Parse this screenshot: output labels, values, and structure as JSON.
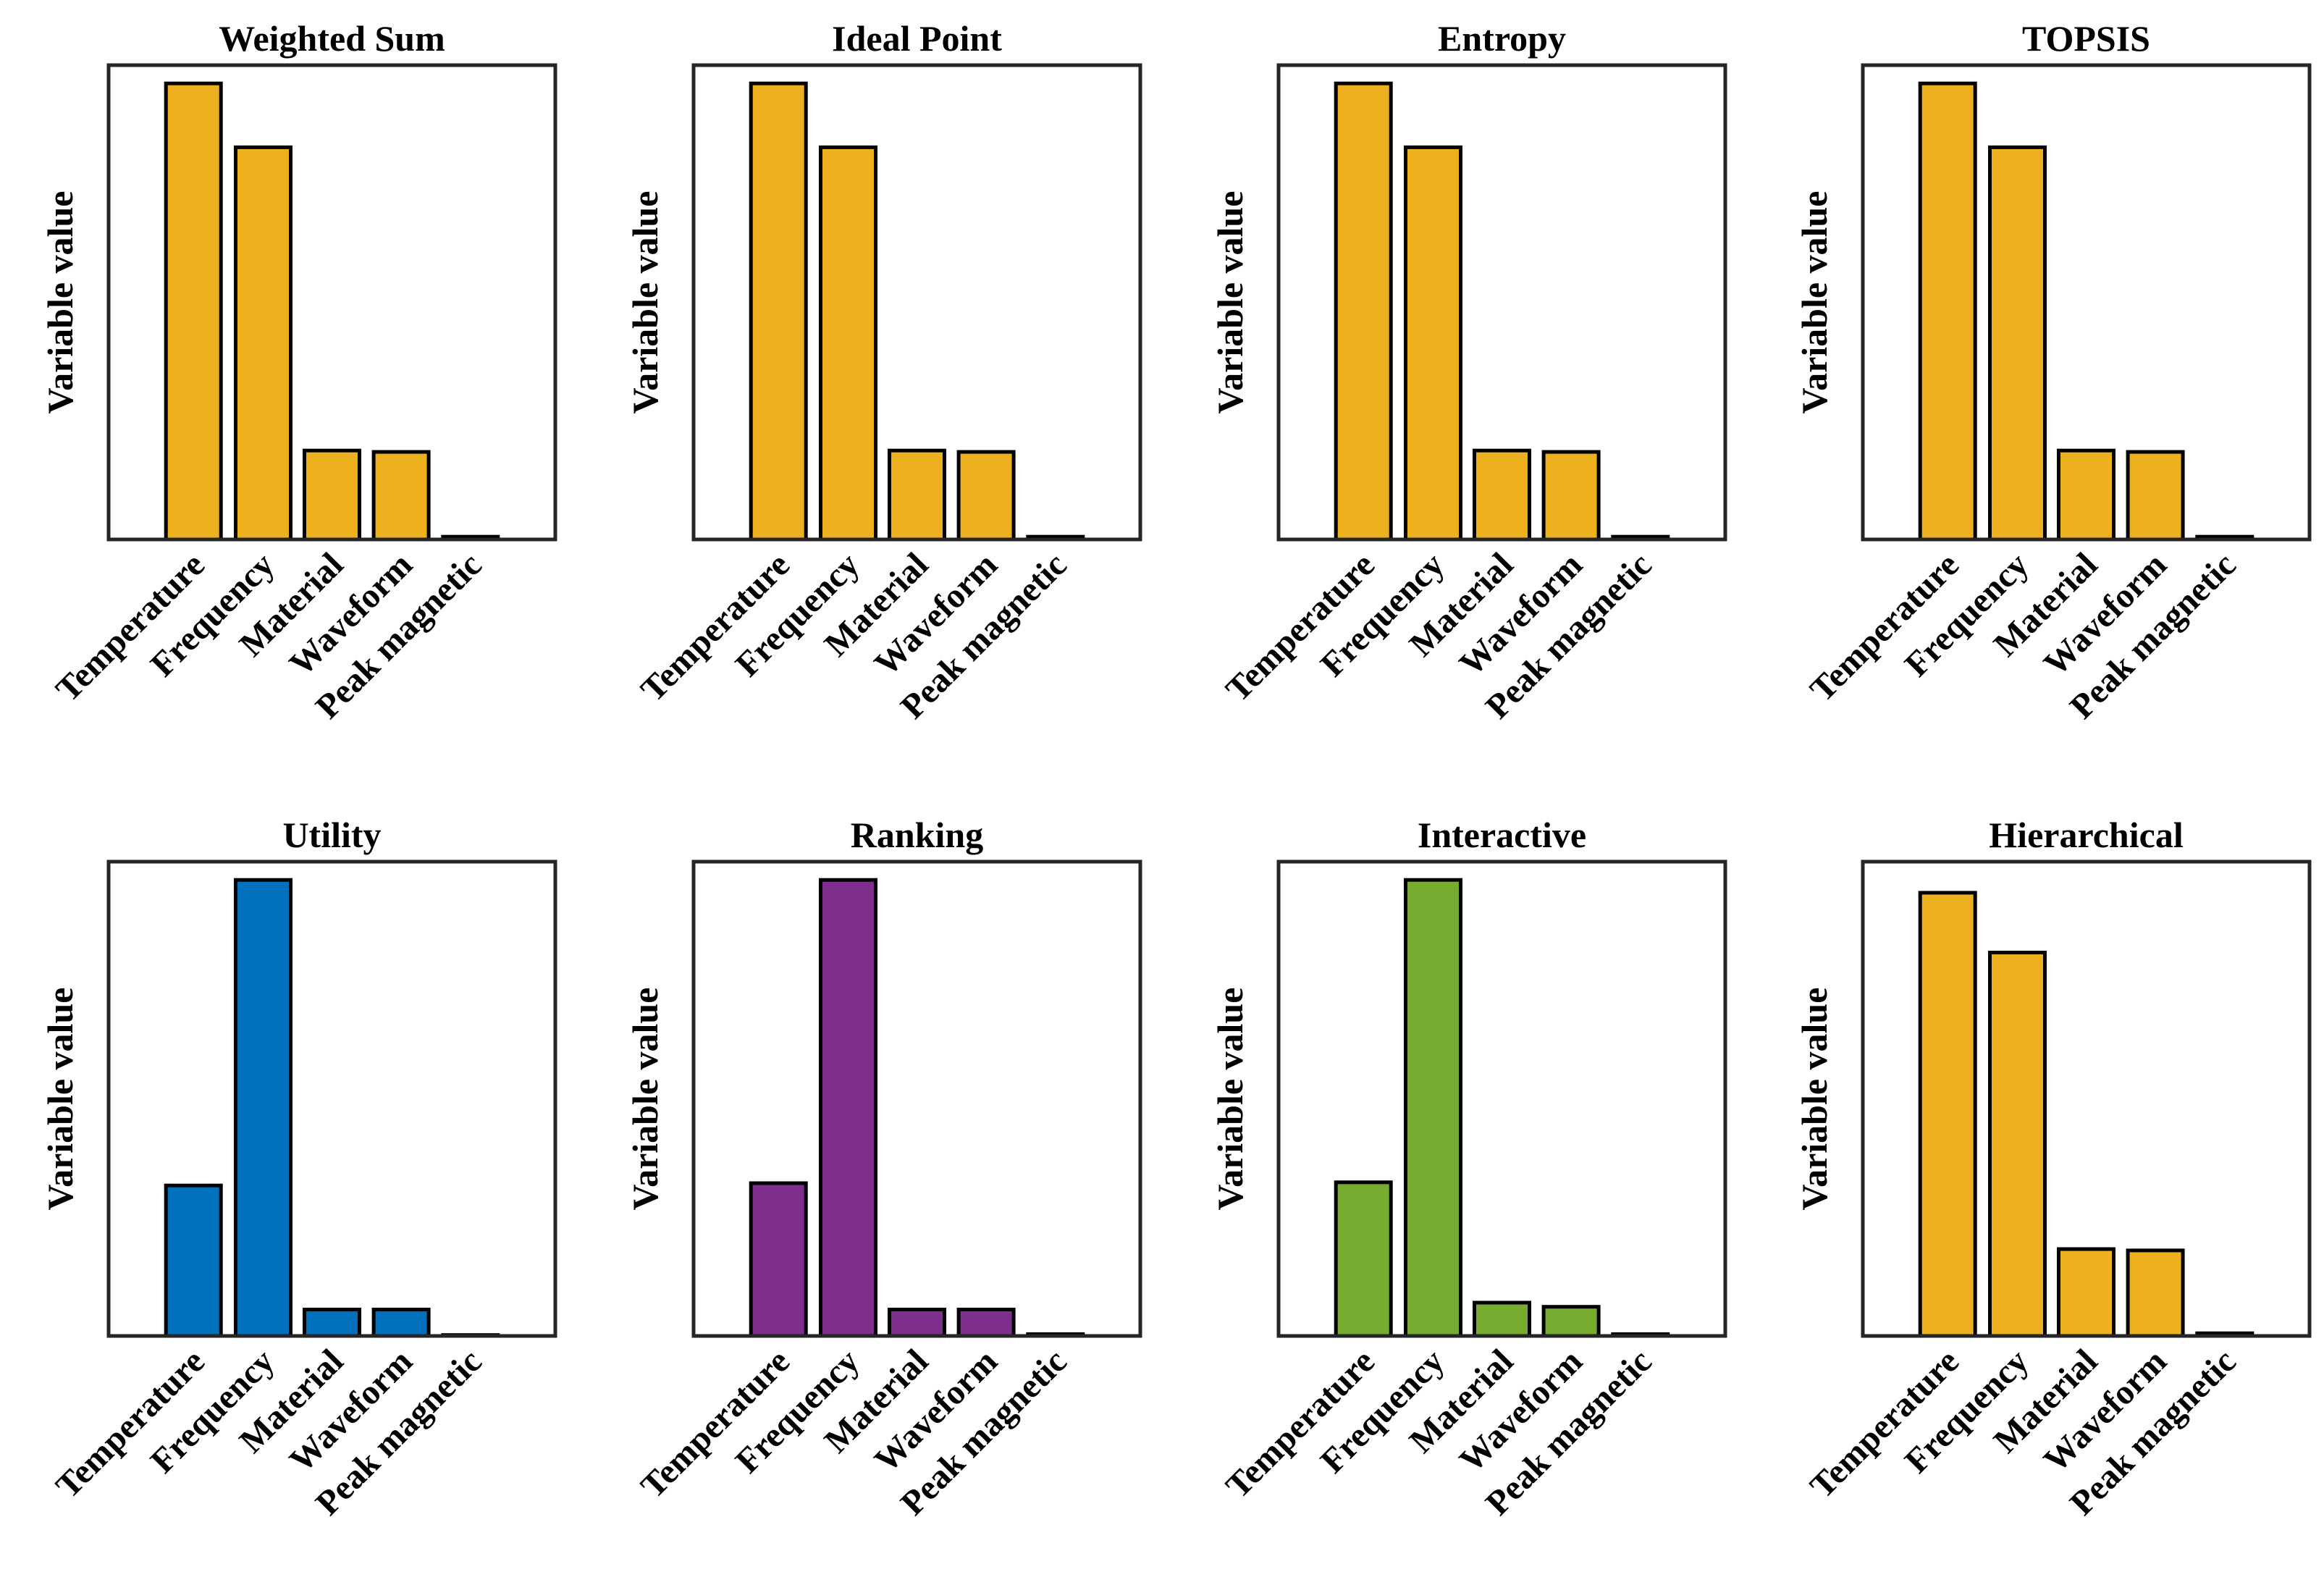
{
  "chart_data": [
    {
      "type": "bar",
      "title": "Weighted Sum",
      "ylabel": "Variable value",
      "categories": [
        "Temperature",
        "Frequency",
        "Material",
        "Waveform",
        "Peak magnetic"
      ],
      "values": [
        1.0,
        0.86,
        0.195,
        0.192,
        0.006
      ],
      "ylim": [
        0,
        1.04
      ],
      "color": "#EDB120",
      "grid": false
    },
    {
      "type": "bar",
      "title": "Ideal Point",
      "ylabel": "Variable value",
      "categories": [
        "Temperature",
        "Frequency",
        "Material",
        "Waveform",
        "Peak magnetic"
      ],
      "values": [
        1.0,
        0.86,
        0.195,
        0.192,
        0.006
      ],
      "ylim": [
        0,
        1.04
      ],
      "color": "#EDB120",
      "grid": false
    },
    {
      "type": "bar",
      "title": "Entropy",
      "ylabel": "Variable value",
      "categories": [
        "Temperature",
        "Frequency",
        "Material",
        "Waveform",
        "Peak magnetic"
      ],
      "values": [
        1.0,
        0.86,
        0.195,
        0.192,
        0.006
      ],
      "ylim": [
        0,
        1.04
      ],
      "color": "#EDB120",
      "grid": false
    },
    {
      "type": "bar",
      "title": "TOPSIS",
      "ylabel": "Variable value",
      "categories": [
        "Temperature",
        "Frequency",
        "Material",
        "Waveform",
        "Peak magnetic"
      ],
      "values": [
        1.0,
        0.86,
        0.195,
        0.192,
        0.006
      ],
      "ylim": [
        0,
        1.04
      ],
      "color": "#EDB120",
      "grid": false
    },
    {
      "type": "bar",
      "title": "Utility",
      "ylabel": "Variable value",
      "categories": [
        "Temperature",
        "Frequency",
        "Material",
        "Waveform",
        "Peak magnetic"
      ],
      "values": [
        0.33,
        1.0,
        0.058,
        0.058,
        0.002
      ],
      "ylim": [
        0,
        1.04
      ],
      "color": "#0072BD",
      "grid": false
    },
    {
      "type": "bar",
      "title": "Ranking",
      "ylabel": "Variable value",
      "categories": [
        "Temperature",
        "Frequency",
        "Material",
        "Waveform",
        "Peak magnetic"
      ],
      "values": [
        0.335,
        1.0,
        0.058,
        0.058,
        0.004
      ],
      "ylim": [
        0,
        1.04
      ],
      "color": "#7E2F8E",
      "grid": false
    },
    {
      "type": "bar",
      "title": "Interactive",
      "ylabel": "Variable value",
      "categories": [
        "Temperature",
        "Frequency",
        "Material",
        "Waveform",
        "Peak magnetic"
      ],
      "values": [
        0.337,
        1.0,
        0.073,
        0.064,
        0.004
      ],
      "ylim": [
        0,
        1.04
      ],
      "color": "#77AC30",
      "grid": false
    },
    {
      "type": "bar",
      "title": "Hierarchical",
      "ylabel": "Variable value",
      "categories": [
        "Temperature",
        "Frequency",
        "Material",
        "Waveform",
        "Peak magnetic"
      ],
      "values": [
        1.0,
        0.865,
        0.196,
        0.193,
        0.006
      ],
      "ylim": [
        0,
        1.07
      ],
      "color": "#EDB120",
      "grid": false
    }
  ]
}
